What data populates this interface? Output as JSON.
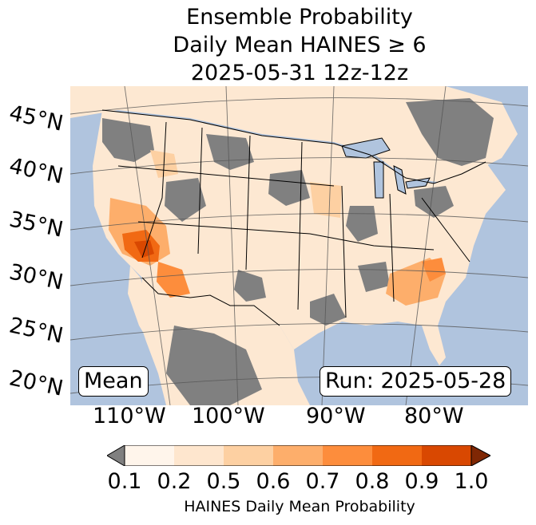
{
  "title": {
    "line1": "Ensemble Probability",
    "line2": "Daily Mean HAINES ≥ 6",
    "line3": "2025-05-31 12z-12z"
  },
  "map": {
    "lat_labels": [
      "45°N",
      "40°N",
      "35°N",
      "30°N",
      "25°N",
      "20°N"
    ],
    "lon_labels": [
      "110°W",
      "100°W",
      "90°W",
      "80°W"
    ],
    "stat_label": "Mean",
    "run_label": "Run: 2025-05-28",
    "colors": {
      "ocean": "#b0c4de",
      "land_low": "#fde8d2",
      "no_data": "#808080",
      "border": "#000000",
      "gridline": "#555555"
    }
  },
  "colorbar": {
    "label": "HAINES Daily Mean Probability",
    "ticks": [
      "0.1",
      "0.2",
      "0.5",
      "0.6",
      "0.7",
      "0.8",
      "0.9",
      "1.0"
    ],
    "under_color": "#808080",
    "over_color": "#7f2704",
    "bins": [
      "#fff5eb",
      "#fee6ce",
      "#fdd0a2",
      "#fdae6b",
      "#fd8d3c",
      "#f16913",
      "#d94801"
    ]
  }
}
